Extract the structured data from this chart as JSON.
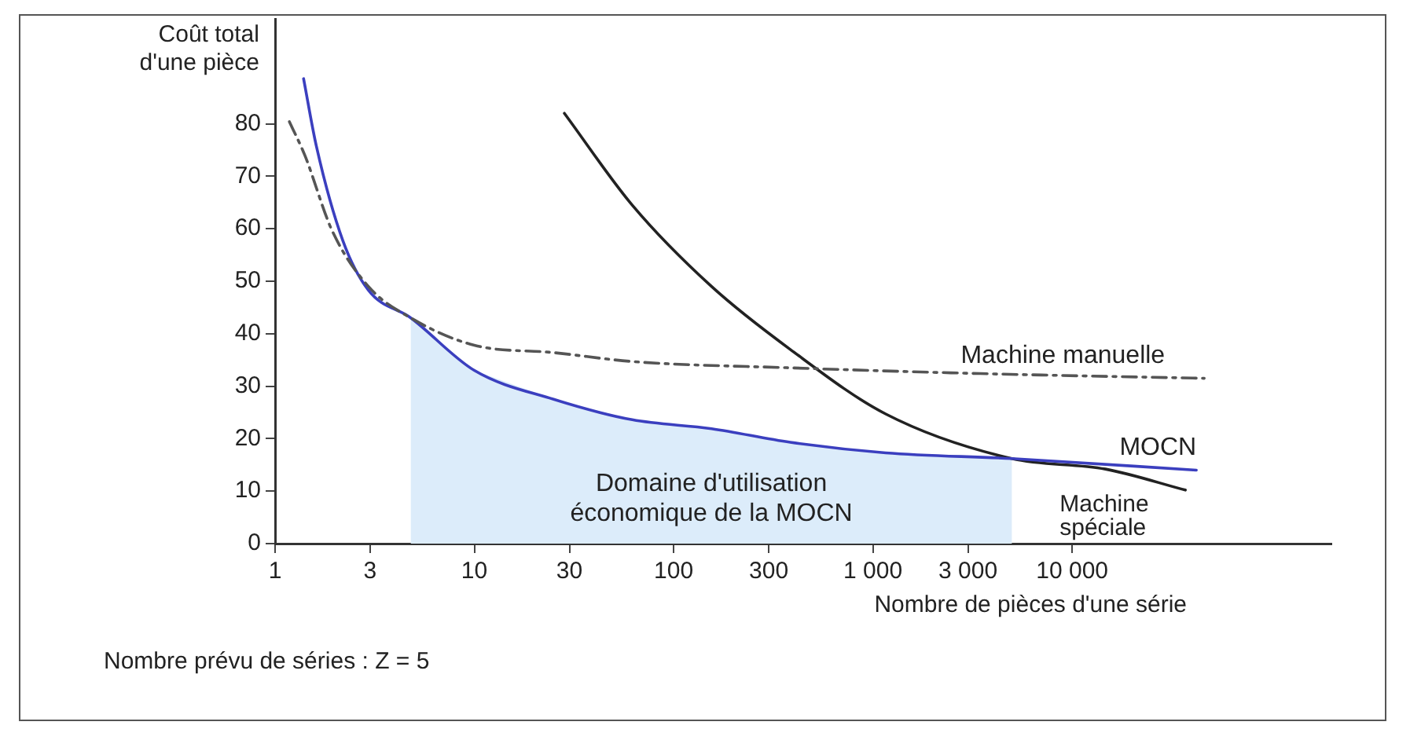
{
  "chart_data": {
    "type": "line",
    "ylabel": "Coût total d'une pièce",
    "xlabel": "Nombre de pièces d'une série",
    "log": "x",
    "legend": false,
    "grid": false,
    "marker": "none",
    "xlim": [
      1,
      200000
    ],
    "xticks": [
      1,
      3,
      10,
      30,
      100,
      300,
      {
        "value": 1000,
        "label": "1 000"
      },
      {
        "value": 3000,
        "label": "3 000"
      },
      {
        "value": 10000,
        "label": "10 000"
      }
    ],
    "ylim": [
      0,
      100
    ],
    "yticks": [
      0,
      10,
      20,
      30,
      40,
      50,
      60,
      70,
      80
    ],
    "series": [
      {
        "name": "Machine manuelle",
        "color": "#555555",
        "line_style": "dashed",
        "x": [
          1.18,
          1.41,
          1.93,
          2.94,
          4.8,
          10,
          25,
          62,
          385,
          3460,
          46000
        ],
        "values": [
          80.4,
          74,
          59.7,
          49,
          43,
          37.8,
          36.4,
          34.7,
          33.5,
          32.4,
          31.5
        ]
      },
      {
        "name": "MOCN",
        "color": "#3b3fbf",
        "line_style": "solid",
        "x": [
          1.39,
          1.61,
          2.19,
          2.94,
          4.8,
          10,
          25,
          62,
          155,
          385,
          1160,
          4980,
          42000
        ],
        "values": [
          88.6,
          75.8,
          57.7,
          48.3,
          43,
          33,
          27.5,
          23.6,
          21.9,
          19.3,
          17.3,
          16.2,
          14
        ]
      },
      {
        "name": "Machine spéciale",
        "color": "#222222",
        "line_style": "solid",
        "x": [
          28.3,
          62,
          155,
          385,
          1160,
          4980,
          14700,
          37000
        ],
        "values": [
          82,
          64.5,
          49,
          37,
          24.7,
          16.2,
          14.2,
          10.2
        ]
      }
    ],
    "bands": [
      {
        "axis": "x",
        "from": 4.8,
        "to": 4980,
        "label": "Domaine d'utilisation économique de la MOCN",
        "color": "#dcecfa"
      }
    ],
    "annotations": [
      "Nombre prévu de séries : Z = 5"
    ]
  }
}
